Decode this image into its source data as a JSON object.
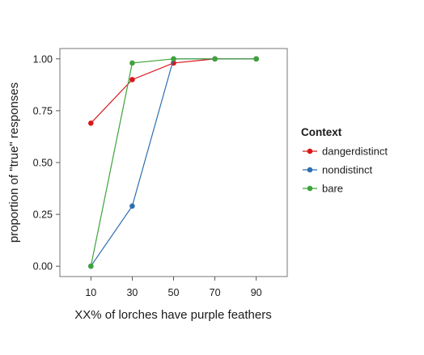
{
  "chart_data": {
    "type": "line",
    "xlabel": "XX% of lorches have purple feathers",
    "ylabel": "proportion of \"true\" responses",
    "x": [
      10,
      30,
      50,
      70,
      90
    ],
    "xlim": [
      -5,
      105
    ],
    "ylim": [
      -0.05,
      1.05
    ],
    "y_ticks": [
      "0.00",
      "0.25",
      "0.50",
      "0.75",
      "1.00"
    ],
    "x_ticks": [
      "10",
      "30",
      "50",
      "70",
      "90"
    ],
    "grid": false,
    "legend": {
      "title": "Context",
      "placement": "right"
    },
    "series": [
      {
        "name": "dangerdistinct",
        "color": "#d7191c",
        "x": [
          10,
          30,
          50,
          70,
          90
        ],
        "values": [
          0.69,
          0.9,
          0.98,
          1.0,
          1.0
        ]
      },
      {
        "name": "nondistinct",
        "color": "#2f6fb0",
        "x": [
          10,
          30,
          50,
          70,
          90
        ],
        "values": [
          0.0,
          0.29,
          1.0,
          1.0,
          1.0
        ]
      },
      {
        "name": "bare",
        "color": "#3ea33a",
        "x": [
          10,
          30,
          50,
          70,
          90
        ],
        "values": [
          0.0,
          0.98,
          1.0,
          1.0,
          1.0
        ]
      }
    ]
  }
}
